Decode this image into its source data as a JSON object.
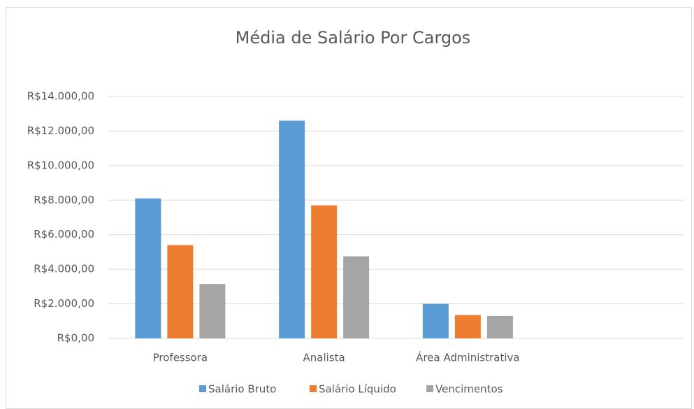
{
  "chart_data": {
    "type": "bar",
    "title": "Média de Salário Por Cargos",
    "categories": [
      "Professora",
      "Analista",
      "Área Administrativa",
      null
    ],
    "series": [
      {
        "name": "Salário Bruto",
        "color": "#5b9bd5",
        "values": [
          8100,
          12600,
          2000,
          null
        ]
      },
      {
        "name": "Salário Líquido",
        "color": "#ed7d31",
        "values": [
          5400,
          7700,
          1350,
          null
        ]
      },
      {
        "name": "Vencimentos",
        "color": "#a5a5a5",
        "values": [
          3150,
          4750,
          1300,
          null
        ]
      }
    ],
    "ylim": [
      0,
      14000
    ],
    "yticks": [
      {
        "value": 0,
        "label": "R$0,00"
      },
      {
        "value": 2000,
        "label": "R$2.000,00"
      },
      {
        "value": 4000,
        "label": "R$4.000,00"
      },
      {
        "value": 6000,
        "label": "R$6.000,00"
      },
      {
        "value": 8000,
        "label": "R$8.000,00"
      },
      {
        "value": 10000,
        "label": "R$10.000,00"
      },
      {
        "value": 12000,
        "label": "R$12.000,00"
      },
      {
        "value": 14000,
        "label": "R$14.000,00"
      }
    ],
    "grid": true,
    "legend": "bottom"
  }
}
